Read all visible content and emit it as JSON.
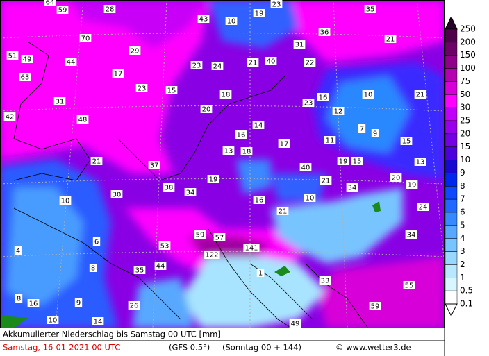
{
  "map": {
    "labels": [
      64,
      59,
      28,
      43,
      10,
      19,
      23,
      35,
      70,
      36,
      21,
      31,
      51,
      49,
      44,
      29,
      23,
      24,
      21,
      40,
      22,
      63,
      17,
      23,
      15,
      18,
      23,
      16,
      10,
      21,
      31,
      20,
      12,
      42,
      48,
      14,
      7,
      9,
      16,
      11,
      15,
      17,
      13,
      18,
      19,
      15,
      13,
      21,
      37,
      40,
      20,
      19,
      38,
      34,
      19,
      21,
      34,
      30,
      10,
      16,
      10,
      24,
      21,
      59,
      57,
      6,
      53,
      34,
      141,
      4,
      122,
      8,
      35,
      44,
      1,
      33,
      55,
      8,
      16,
      9,
      26,
      59,
      10,
      14,
      49
    ]
  },
  "legend": {
    "levels": [
      {
        "label": "250",
        "color": "#2a0028"
      },
      {
        "label": "200",
        "color": "#4e0048"
      },
      {
        "label": "150",
        "color": "#6e0068"
      },
      {
        "label": "100",
        "color": "#900088"
      },
      {
        "label": "75",
        "color": "#b400b0"
      },
      {
        "label": "50",
        "color": "#d800d8"
      },
      {
        "label": "30",
        "color": "#ff00ff"
      },
      {
        "label": "25",
        "color": "#c000f8"
      },
      {
        "label": "20",
        "color": "#9800ec"
      },
      {
        "label": "15",
        "color": "#7400e4"
      },
      {
        "label": "10",
        "color": "#4c00dc"
      },
      {
        "label": "9",
        "color": "#1808d0"
      },
      {
        "label": "8",
        "color": "#0028ec"
      },
      {
        "label": "7",
        "color": "#1048ff"
      },
      {
        "label": "6",
        "color": "#2068ff"
      },
      {
        "label": "5",
        "color": "#3888ff"
      },
      {
        "label": "4",
        "color": "#58a8ff"
      },
      {
        "label": "3",
        "color": "#78c4ff"
      },
      {
        "label": "2",
        "color": "#98d8ff"
      },
      {
        "label": "1",
        "color": "#b8e8ff"
      },
      {
        "label": "0.5",
        "color": "#d8f6ff"
      },
      {
        "label": "0.1",
        "color": "#ffffff"
      }
    ]
  },
  "footer": {
    "title": "Akkumulierter Niederschlag bis Samstag 00 UTC [mm]",
    "run": "Samstag, 16-01-2021  00 UTC",
    "model": "(GFS 0.5°)",
    "lead": "(Sonntag 00 + 144)",
    "source": "© www.wetter3.de"
  }
}
